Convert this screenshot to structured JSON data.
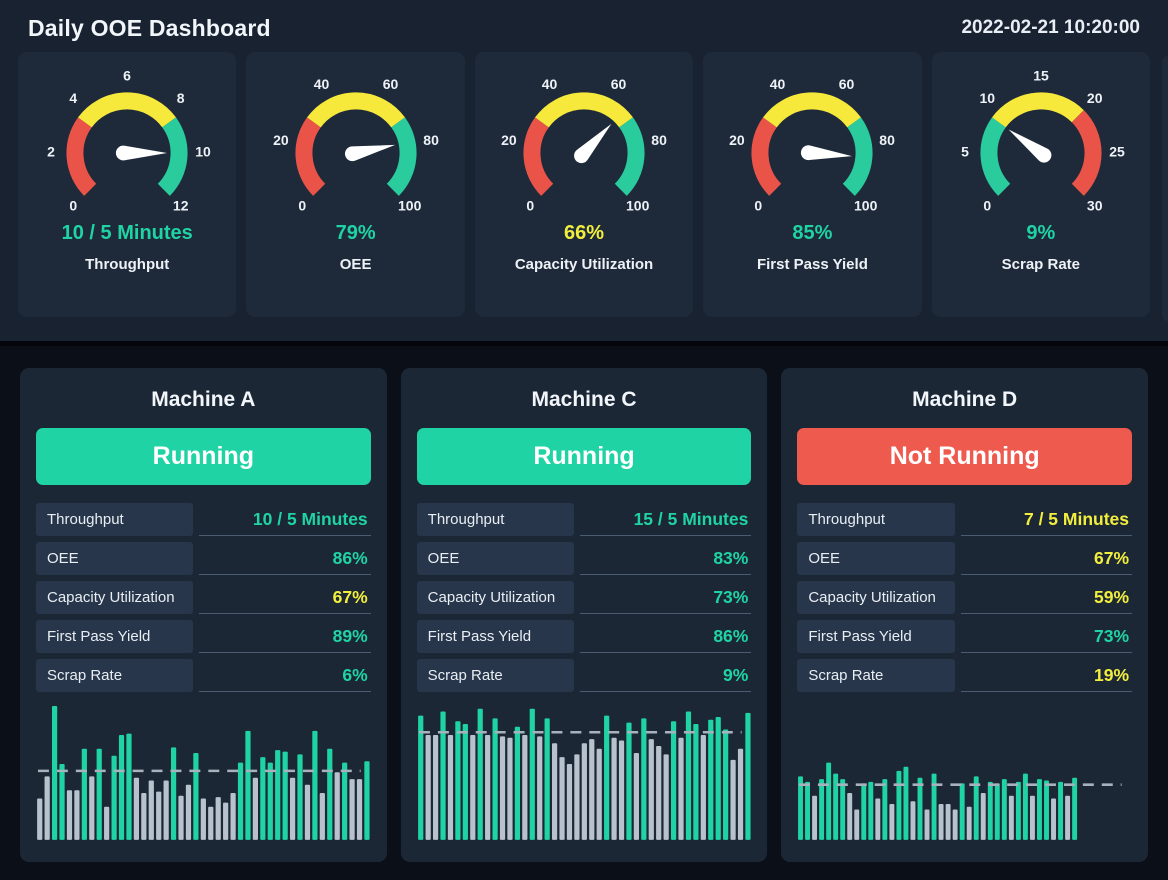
{
  "header": {
    "title": "Daily OOE Dashboard",
    "timestamp": "2022-02-21 10:20:00"
  },
  "palette": {
    "page_top_bg": "#182230",
    "page_bottom_bg": "#0b0f17",
    "gauge_card_bg": "#1e2a3a",
    "machine_card_bg": "#1c2736",
    "label_cell_bg": "#27364a",
    "row_line": "#4b5b70",
    "text": "#f2f6fa",
    "green": "#1fd3a4",
    "yellow": "#f2ee3d",
    "red": "#ef5a4e",
    "gauge_red": "#ea5448",
    "gauge_yellow": "#f6e93c",
    "gauge_green": "#2acb9d",
    "bar_gray": "#b8c2cc",
    "dash_line": "#a8b2bd",
    "needle": "#ffffff"
  },
  "chart_data": [
    {
      "type": "gauge",
      "title": "Throughput",
      "display": "10 / 5 Minutes",
      "display_color": "#1fd3a4",
      "value": 10,
      "min": 0,
      "max": 12,
      "ticks": [
        0,
        2,
        4,
        6,
        8,
        10,
        12
      ],
      "zones": [
        {
          "from": 0,
          "to": 3.6,
          "color": "#ea5448"
        },
        {
          "from": 3.6,
          "to": 8.4,
          "color": "#f6e93c"
        },
        {
          "from": 8.4,
          "to": 12,
          "color": "#2acb9d"
        }
      ]
    },
    {
      "type": "gauge",
      "title": "OEE",
      "display": "79%",
      "display_color": "#1fd3a4",
      "value": 79,
      "min": 0,
      "max": 100,
      "ticks": [
        0,
        20,
        40,
        60,
        80,
        100
      ],
      "zones": [
        {
          "from": 0,
          "to": 30,
          "color": "#ea5448"
        },
        {
          "from": 30,
          "to": 70,
          "color": "#f6e93c"
        },
        {
          "from": 70,
          "to": 100,
          "color": "#2acb9d"
        }
      ]
    },
    {
      "type": "gauge",
      "title": "Capacity Utilization",
      "display": "66%",
      "display_color": "#f2ee3d",
      "value": 66,
      "min": 0,
      "max": 100,
      "ticks": [
        0,
        20,
        40,
        60,
        80,
        100
      ],
      "zones": [
        {
          "from": 0,
          "to": 30,
          "color": "#ea5448"
        },
        {
          "from": 30,
          "to": 70,
          "color": "#f6e93c"
        },
        {
          "from": 70,
          "to": 100,
          "color": "#2acb9d"
        }
      ]
    },
    {
      "type": "gauge",
      "title": "First Pass Yield",
      "display": "85%",
      "display_color": "#1fd3a4",
      "value": 85,
      "min": 0,
      "max": 100,
      "ticks": [
        0,
        20,
        40,
        60,
        80,
        100
      ],
      "zones": [
        {
          "from": 0,
          "to": 30,
          "color": "#ea5448"
        },
        {
          "from": 30,
          "to": 70,
          "color": "#f6e93c"
        },
        {
          "from": 70,
          "to": 100,
          "color": "#2acb9d"
        }
      ]
    },
    {
      "type": "gauge",
      "title": "Scrap Rate",
      "display": "9%",
      "display_color": "#1fd3a4",
      "value": 9,
      "min": 0,
      "max": 30,
      "ticks": [
        0,
        5,
        10,
        15,
        20,
        25,
        30
      ],
      "zones": [
        {
          "from": 0,
          "to": 9,
          "color": "#2acb9d"
        },
        {
          "from": 9,
          "to": 20,
          "color": "#f6e93c"
        },
        {
          "from": 20,
          "to": 30,
          "color": "#ea5448"
        }
      ]
    },
    {
      "type": "bar",
      "title": "Machine A production trend",
      "unit": "relative height 0-1",
      "threshold": 0.5,
      "bars_span": 1.0,
      "above_color": "#1fd3a4",
      "below_color": "#b8c2cc",
      "values": [
        0.3,
        0.46,
        0.97,
        0.55,
        0.36,
        0.36,
        0.66,
        0.46,
        0.66,
        0.24,
        0.61,
        0.76,
        0.77,
        0.45,
        0.34,
        0.43,
        0.35,
        0.43,
        0.67,
        0.32,
        0.4,
        0.63,
        0.3,
        0.24,
        0.31,
        0.27,
        0.34,
        0.56,
        0.79,
        0.45,
        0.6,
        0.56,
        0.65,
        0.64,
        0.45,
        0.62,
        0.4,
        0.79,
        0.34,
        0.66,
        0.49,
        0.56,
        0.44,
        0.44,
        0.57
      ]
    },
    {
      "type": "bar",
      "title": "Machine C production trend",
      "unit": "relative height 0-1",
      "threshold": 0.78,
      "bars_span": 1.0,
      "above_color": "#1fd3a4",
      "below_color": "#b8c2cc",
      "values": [
        0.9,
        0.76,
        0.76,
        0.93,
        0.76,
        0.86,
        0.84,
        0.76,
        0.95,
        0.76,
        0.88,
        0.75,
        0.74,
        0.82,
        0.76,
        0.95,
        0.75,
        0.88,
        0.7,
        0.6,
        0.55,
        0.62,
        0.7,
        0.73,
        0.66,
        0.9,
        0.74,
        0.72,
        0.85,
        0.63,
        0.88,
        0.73,
        0.68,
        0.62,
        0.86,
        0.74,
        0.93,
        0.84,
        0.76,
        0.87,
        0.89,
        0.8,
        0.58,
        0.66,
        0.92
      ]
    },
    {
      "type": "bar",
      "title": "Machine D production trend",
      "unit": "relative height 0-1",
      "threshold": 0.4,
      "bars_span": 0.84,
      "above_color": "#1fd3a4",
      "below_color": "#b8c2cc",
      "values": [
        0.46,
        0.42,
        0.32,
        0.44,
        0.56,
        0.48,
        0.44,
        0.34,
        0.22,
        0.41,
        0.42,
        0.3,
        0.44,
        0.26,
        0.5,
        0.53,
        0.28,
        0.45,
        0.22,
        0.48,
        0.26,
        0.26,
        0.22,
        0.41,
        0.24,
        0.46,
        0.34,
        0.42,
        0.41,
        0.44,
        0.32,
        0.42,
        0.48,
        0.32,
        0.44,
        0.43,
        0.3,
        0.42,
        0.32,
        0.45
      ]
    }
  ],
  "machines": [
    {
      "name": "Machine A",
      "status": "Running",
      "status_color": "#1fd3a4",
      "chart_index": 5,
      "metrics": [
        {
          "label": "Throughput",
          "value": "10 / 5 Minutes",
          "color": "#1fd3a4"
        },
        {
          "label": "OEE",
          "value": "86%",
          "color": "#1fd3a4"
        },
        {
          "label": "Capacity Utilization",
          "value": "67%",
          "color": "#f2ee3d"
        },
        {
          "label": "First Pass Yield",
          "value": "89%",
          "color": "#1fd3a4"
        },
        {
          "label": "Scrap Rate",
          "value": "6%",
          "color": "#1fd3a4"
        }
      ]
    },
    {
      "name": "Machine C",
      "status": "Running",
      "status_color": "#1fd3a4",
      "chart_index": 6,
      "metrics": [
        {
          "label": "Throughput",
          "value": "15 / 5 Minutes",
          "color": "#1fd3a4"
        },
        {
          "label": "OEE",
          "value": "83%",
          "color": "#1fd3a4"
        },
        {
          "label": "Capacity Utilization",
          "value": "73%",
          "color": "#1fd3a4"
        },
        {
          "label": "First Pass Yield",
          "value": "86%",
          "color": "#1fd3a4"
        },
        {
          "label": "Scrap Rate",
          "value": "9%",
          "color": "#1fd3a4"
        }
      ]
    },
    {
      "name": "Machine D",
      "status": "Not Running",
      "status_color": "#ef5a4e",
      "chart_index": 7,
      "metrics": [
        {
          "label": "Throughput",
          "value": "7 / 5 Minutes",
          "color": "#f2ee3d"
        },
        {
          "label": "OEE",
          "value": "67%",
          "color": "#f2ee3d"
        },
        {
          "label": "Capacity Utilization",
          "value": "59%",
          "color": "#f2ee3d"
        },
        {
          "label": "First Pass Yield",
          "value": "73%",
          "color": "#1fd3a4"
        },
        {
          "label": "Scrap Rate",
          "value": "19%",
          "color": "#f2ee3d"
        }
      ]
    }
  ]
}
